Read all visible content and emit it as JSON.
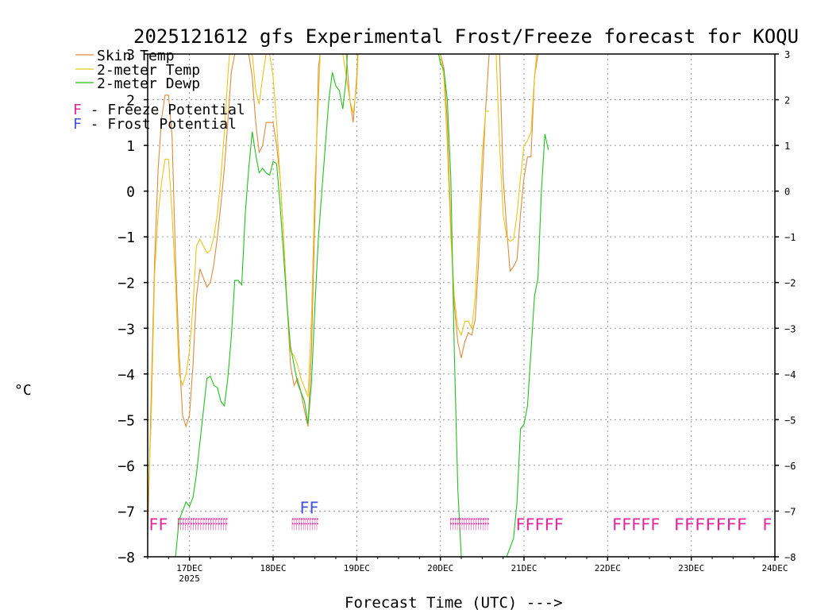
{
  "page": {
    "title": "2025121612 gfs Experimental Frost/Freeze forecast for KOQU",
    "x_axis_label": "Forecast Time (UTC) --->",
    "y_axis_label": "°C"
  },
  "legend": {
    "skin": {
      "label": "Skin Temp",
      "color": "#e08a3c"
    },
    "t2m": {
      "label": "2-meter Temp",
      "color": "#e8c61c"
    },
    "dewp": {
      "label": "2-meter Dewp",
      "color": "#22c11e"
    },
    "freeze": {
      "letter": "F",
      "label": " - Freeze Potential",
      "color": "#e0279a"
    },
    "frost": {
      "letter": "F",
      "label": " - Frost Potential",
      "color": "#4055d8"
    }
  },
  "chart_data": {
    "type": "line",
    "title": "2025121612 gfs Experimental Frost/Freeze forecast for KOQU",
    "xlabel": "Forecast Time (UTC) --->",
    "ylabel": "°C",
    "xlim": [
      12,
      192
    ],
    "ylim": [
      -8,
      3
    ],
    "x_units": "hours since 2025-12-16 00Z",
    "y_ticks": [
      -8,
      -7,
      -6,
      -5,
      -4,
      -3,
      -2,
      -1,
      0,
      1,
      2,
      3
    ],
    "y_tick_labels": [
      "−8",
      "−7",
      "−6",
      "−5",
      "−4",
      "−3",
      "−2",
      "−1",
      "0",
      "1",
      "2",
      "3"
    ],
    "x_ticks": [
      {
        "hour": 24,
        "label": "17DEC",
        "sub": "2025"
      },
      {
        "hour": 48,
        "label": "18DEC",
        "sub": ""
      },
      {
        "hour": 72,
        "label": "19DEC",
        "sub": ""
      },
      {
        "hour": 96,
        "label": "20DEC",
        "sub": ""
      },
      {
        "hour": 120,
        "label": "21DEC",
        "sub": ""
      },
      {
        "hour": 144,
        "label": "22DEC",
        "sub": ""
      },
      {
        "hour": 168,
        "label": "23DEC",
        "sub": ""
      },
      {
        "hour": 192,
        "label": "24DEC",
        "sub": ""
      }
    ],
    "series": [
      {
        "name": "Skin Temp",
        "color": "#e08a3c",
        "segments": [
          [
            [
              12,
              -7.6
            ],
            [
              13,
              -4.5
            ],
            [
              14,
              -1.5
            ],
            [
              15,
              0.5
            ],
            [
              16,
              1.6
            ],
            [
              17,
              2.1
            ],
            [
              18,
              2.1
            ],
            [
              19,
              1.2
            ],
            [
              20,
              -1.5
            ],
            [
              21,
              -3.5
            ],
            [
              22,
              -4.9
            ],
            [
              23,
              -5.15
            ],
            [
              24,
              -4.9
            ],
            [
              25,
              -3.8
            ],
            [
              26,
              -2.3
            ],
            [
              27,
              -1.7
            ],
            [
              28,
              -1.9
            ],
            [
              29,
              -2.1
            ],
            [
              30,
              -2.0
            ],
            [
              31,
              -1.6
            ],
            [
              32,
              -1.0
            ],
            [
              33,
              -0.3
            ],
            [
              34,
              0.5
            ],
            [
              35,
              1.5
            ],
            [
              36,
              2.6
            ],
            [
              37,
              3.0
            ]
          ],
          [
            [
              41,
              3.0
            ],
            [
              42,
              2.5
            ],
            [
              43,
              1.5
            ],
            [
              44,
              0.85
            ],
            [
              45,
              1.0
            ],
            [
              46,
              1.5
            ],
            [
              47,
              1.5
            ],
            [
              48,
              1.5
            ],
            [
              49,
              1.0
            ],
            [
              50,
              0.3
            ],
            [
              51,
              -1.0
            ],
            [
              52,
              -2.5
            ],
            [
              53,
              -3.8
            ],
            [
              54,
              -4.25
            ],
            [
              55,
              -4.1
            ],
            [
              56,
              -4.4
            ],
            [
              57,
              -4.8
            ],
            [
              58,
              -5.15
            ],
            [
              59,
              -3.5
            ],
            [
              60,
              -0.5
            ],
            [
              61,
              2.7
            ],
            [
              61.5,
              3.0
            ]
          ],
          [
            [
              69,
              3.0
            ],
            [
              70,
              2.0
            ],
            [
              71,
              1.5
            ],
            [
              72,
              2.5
            ],
            [
              72.3,
              3.0
            ]
          ],
          [
            [
              96,
              3.0
            ],
            [
              97,
              2.7
            ],
            [
              98,
              1.5
            ],
            [
              99,
              -0.8
            ],
            [
              100,
              -2.5
            ],
            [
              101,
              -3.3
            ],
            [
              102,
              -3.65
            ],
            [
              103,
              -3.3
            ],
            [
              104,
              -3.1
            ],
            [
              105,
              -3.15
            ],
            [
              106,
              -2.8
            ],
            [
              107,
              -1.5
            ],
            [
              108,
              0.2
            ],
            [
              109,
              1.8
            ],
            [
              110,
              3.0
            ]
          ],
          [
            [
              113,
              3.0
            ],
            [
              114,
              0.3
            ],
            [
              115,
              -0.8
            ],
            [
              116,
              -1.75
            ],
            [
              117,
              -1.65
            ],
            [
              118,
              -1.5
            ],
            [
              119,
              -0.5
            ],
            [
              120,
              0.3
            ],
            [
              121,
              0.75
            ],
            [
              122,
              0.75
            ],
            [
              123,
              2.5
            ],
            [
              124,
              3.0
            ]
          ]
        ]
      },
      {
        "name": "2-meter Temp",
        "color": "#e8c61c",
        "segments": [
          [
            [
              12,
              -7.0
            ],
            [
              13,
              -5.0
            ],
            [
              14,
              -1.8
            ],
            [
              15,
              -0.5
            ],
            [
              16,
              0.2
            ],
            [
              17,
              0.7
            ],
            [
              18,
              0.7
            ],
            [
              19,
              -0.5
            ],
            [
              20,
              -2.0
            ],
            [
              21,
              -4.0
            ],
            [
              22,
              -4.25
            ],
            [
              23,
              -4.0
            ],
            [
              24,
              -3.5
            ],
            [
              25,
              -2.5
            ],
            [
              26,
              -1.2
            ],
            [
              27,
              -1.05
            ],
            [
              28,
              -1.2
            ],
            [
              29,
              -1.35
            ],
            [
              30,
              -1.3
            ],
            [
              31,
              -1.0
            ],
            [
              32,
              -0.5
            ],
            [
              33,
              0.3
            ],
            [
              34,
              1.3
            ],
            [
              35,
              2.5
            ],
            [
              35.5,
              3.0
            ]
          ],
          [
            [
              42,
              3.0
            ],
            [
              43,
              2.2
            ],
            [
              44,
              1.9
            ],
            [
              45,
              2.5
            ],
            [
              46,
              3.0
            ]
          ],
          [
            [
              47,
              3.0
            ],
            [
              48,
              2.5
            ],
            [
              49,
              1.5
            ],
            [
              50,
              0.3
            ],
            [
              51,
              -1.0
            ],
            [
              52,
              -2.5
            ],
            [
              53,
              -3.5
            ],
            [
              54,
              -3.6
            ],
            [
              55,
              -3.8
            ],
            [
              56,
              -4.1
            ],
            [
              57,
              -4.3
            ],
            [
              58,
              -4.5
            ],
            [
              59,
              -2.8
            ],
            [
              60,
              0.2
            ],
            [
              61,
              2.0
            ],
            [
              61.5,
              3.0
            ]
          ],
          [
            [
              68,
              3.0
            ],
            [
              69,
              2.5
            ],
            [
              70,
              2.0
            ],
            [
              71,
              1.7
            ],
            [
              72,
              2.3
            ],
            [
              72.4,
              3.0
            ]
          ],
          [
            [
              96,
              3.0
            ],
            [
              97,
              2.5
            ],
            [
              98,
              1.0
            ],
            [
              99,
              -1.0
            ],
            [
              100,
              -2.3
            ],
            [
              101,
              -3.0
            ],
            [
              102,
              -3.15
            ],
            [
              103,
              -2.85
            ],
            [
              104,
              -2.85
            ],
            [
              105,
              -3.0
            ],
            [
              106,
              -2.3
            ],
            [
              107,
              -0.8
            ],
            [
              108,
              0.8
            ],
            [
              109,
              1.75
            ],
            [
              110,
              1.75
            ]
          ],
          [
            [
              112,
              3.0
            ],
            [
              113,
              1.0
            ],
            [
              114,
              -0.5
            ],
            [
              115,
              -1.0
            ],
            [
              116,
              -1.1
            ],
            [
              117,
              -1.05
            ],
            [
              118,
              -0.5
            ],
            [
              119,
              0.3
            ],
            [
              120,
              1.0
            ],
            [
              121,
              1.1
            ],
            [
              122,
              1.3
            ],
            [
              123,
              2.5
            ],
            [
              123.6,
              3.0
            ]
          ]
        ]
      },
      {
        "name": "2-meter Dewp",
        "color": "#22c11e",
        "segments": [
          [
            [
              20,
              -8.0
            ],
            [
              21,
              -7.2
            ],
            [
              22,
              -7.0
            ],
            [
              23,
              -6.8
            ],
            [
              24,
              -6.9
            ],
            [
              25,
              -6.7
            ],
            [
              26,
              -6.2
            ],
            [
              27,
              -5.5
            ],
            [
              28,
              -4.8
            ],
            [
              29,
              -4.1
            ],
            [
              30,
              -4.05
            ],
            [
              31,
              -4.25
            ],
            [
              32,
              -4.3
            ],
            [
              33,
              -4.6
            ],
            [
              34,
              -4.7
            ],
            [
              35,
              -4.1
            ],
            [
              36,
              -3.2
            ],
            [
              37,
              -1.95
            ],
            [
              38,
              -1.95
            ],
            [
              39,
              -2.05
            ],
            [
              40,
              -0.5
            ],
            [
              41,
              0.5
            ],
            [
              42,
              1.3
            ],
            [
              43,
              0.8
            ],
            [
              44,
              0.4
            ],
            [
              45,
              0.5
            ],
            [
              46,
              0.4
            ],
            [
              47,
              0.35
            ],
            [
              48,
              0.65
            ],
            [
              49,
              0.6
            ],
            [
              50,
              -0.3
            ],
            [
              51,
              -1.4
            ],
            [
              52,
              -2.5
            ],
            [
              53,
              -3.4
            ],
            [
              54,
              -3.8
            ],
            [
              55,
              -4.2
            ],
            [
              56,
              -4.4
            ],
            [
              57,
              -4.6
            ],
            [
              58,
              -5.1
            ],
            [
              59,
              -4.2
            ],
            [
              60,
              -2.5
            ],
            [
              61,
              -1.0
            ],
            [
              62,
              0.0
            ],
            [
              63,
              1.0
            ],
            [
              64,
              2.0
            ],
            [
              65,
              2.6
            ],
            [
              66,
              2.3
            ],
            [
              67,
              2.2
            ],
            [
              68,
              1.8
            ],
            [
              69,
              2.5
            ],
            [
              69.3,
              3.0
            ]
          ],
          [
            [
              95.5,
              3.0
            ],
            [
              96,
              2.8
            ],
            [
              97,
              2.65
            ],
            [
              98,
              2.0
            ],
            [
              99,
              0.3
            ],
            [
              100,
              -3.5
            ],
            [
              101,
              -6.5
            ],
            [
              102,
              -8.0
            ]
          ],
          [
            [
              115,
              -8.0
            ],
            [
              116,
              -7.8
            ],
            [
              117,
              -7.6
            ],
            [
              118,
              -6.8
            ],
            [
              119,
              -5.2
            ],
            [
              120,
              -5.1
            ],
            [
              121,
              -4.7
            ],
            [
              122,
              -3.5
            ],
            [
              123,
              -2.3
            ],
            [
              124,
              -1.9
            ],
            [
              125,
              0.0
            ],
            [
              126,
              1.25
            ],
            [
              127,
              0.9
            ]
          ]
        ]
      }
    ],
    "freeze_potential_rows": [
      {
        "text": "FF",
        "start_hour": 12.3,
        "hours": [
          12,
          13
        ]
      },
      {
        "text": "FFFFFFFFFFFFFFFFFFFF",
        "start_hour": 20.5,
        "hours_range": [
          20,
          35
        ]
      },
      {
        "text": "FFFFFFFFFFFF",
        "start_hour": 53.3,
        "hours_range": [
          53,
          61
        ]
      },
      {
        "text": "FFFFFFFFFFFFFFFFF",
        "start_hour": 98.7,
        "hours_range": [
          99,
          110
        ]
      },
      {
        "text": "FFFFF",
        "start_hour": 117.6,
        "hours_range": [
          117,
          121
        ]
      },
      {
        "text": "FFFFF",
        "start_hour": 145.3,
        "hours_range": [
          145,
          160
        ]
      },
      {
        "text": "FFFFFFF",
        "start_hour": 163.0,
        "hours_range": [
          163,
          184
        ]
      },
      {
        "text": "F",
        "start_hour": 188.4,
        "hours_range": [
          188,
          189
        ]
      }
    ],
    "frost_potential_rows": [
      {
        "text": "FF",
        "start_hour": 55.6,
        "hours_range": [
          55,
          61
        ]
      }
    ],
    "freeze_color": "#e0279a",
    "frost_color": "#4055d8"
  }
}
